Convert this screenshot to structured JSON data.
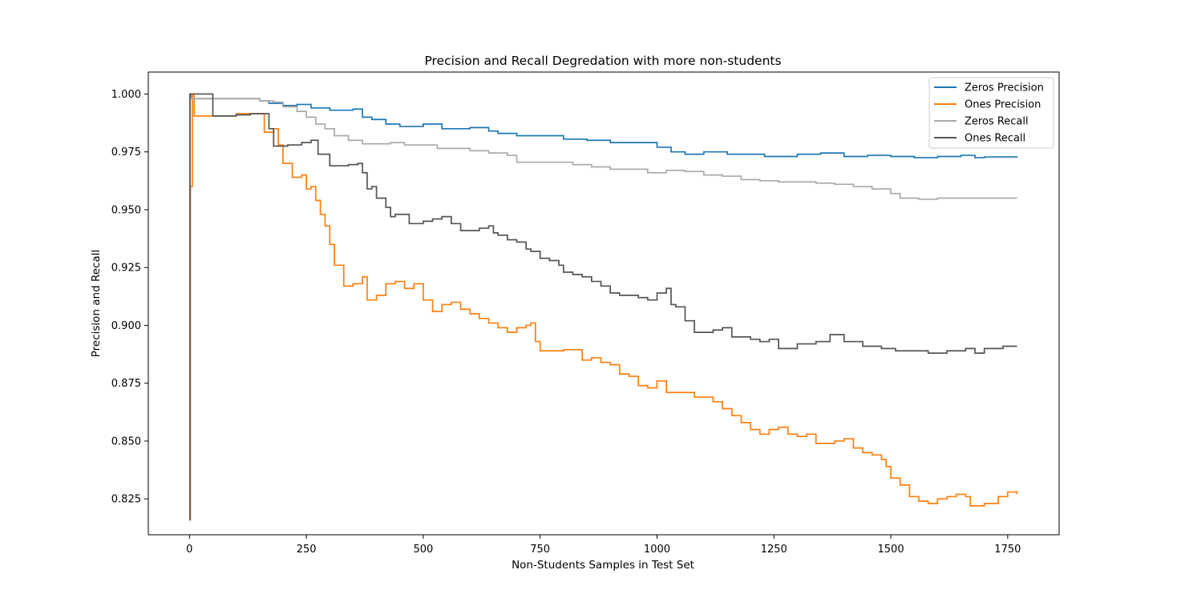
{
  "chart_data": {
    "type": "line",
    "title": "Precision and Recall Degredation with more non-students",
    "xlabel": "Non-Students Samples in Test Set",
    "ylabel": "Precision and Recall",
    "xlim": [
      -88,
      1860
    ],
    "ylim": [
      0.8095,
      1.0095
    ],
    "xticks": [
      0,
      250,
      500,
      750,
      1000,
      1250,
      1500,
      1750
    ],
    "xtick_labels": [
      "0",
      "250",
      "500",
      "750",
      "1000",
      "1250",
      "1500",
      "1750"
    ],
    "yticks": [
      0.825,
      0.85,
      0.875,
      0.9,
      0.925,
      0.95,
      0.975,
      1.0
    ],
    "ytick_labels": [
      "0.825",
      "0.850",
      "0.875",
      "0.900",
      "0.925",
      "0.950",
      "0.975",
      "1.000"
    ],
    "grid": false,
    "legend_position": "top-right",
    "series": [
      {
        "name": "Zeros Precision",
        "color": "#1f77b4",
        "x": [
          0,
          1,
          5,
          10,
          50,
          100,
          148,
          150,
          170,
          200,
          230,
          260,
          300,
          350,
          370,
          390,
          420,
          450,
          500,
          540,
          600,
          640,
          660,
          700,
          750,
          800,
          850,
          900,
          960,
          1000,
          1010,
          1030,
          1060,
          1100,
          1150,
          1200,
          1230,
          1300,
          1350,
          1400,
          1450,
          1500,
          1550,
          1600,
          1650,
          1680,
          1700,
          1770
        ],
        "values": [
          0.816,
          1.0,
          0.998,
          0.998,
          0.998,
          0.998,
          0.998,
          0.997,
          0.996,
          0.995,
          0.9955,
          0.994,
          0.993,
          0.9935,
          0.99,
          0.989,
          0.987,
          0.986,
          0.987,
          0.985,
          0.9855,
          0.984,
          0.983,
          0.982,
          0.982,
          0.9805,
          0.98,
          0.979,
          0.979,
          0.977,
          0.977,
          0.975,
          0.974,
          0.975,
          0.974,
          0.974,
          0.973,
          0.974,
          0.9745,
          0.973,
          0.9735,
          0.973,
          0.9725,
          0.973,
          0.9735,
          0.9725,
          0.9728,
          0.9731
        ]
      },
      {
        "name": "Ones Precision",
        "color": "#ff7f0e",
        "x": [
          0,
          2,
          6,
          10,
          50,
          100,
          130,
          160,
          180,
          190,
          200,
          220,
          240,
          250,
          260,
          270,
          280,
          290,
          300,
          310,
          330,
          350,
          370,
          380,
          400,
          420,
          440,
          460,
          480,
          500,
          520,
          540,
          560,
          580,
          600,
          620,
          640,
          660,
          680,
          700,
          720,
          730,
          740,
          750,
          780,
          800,
          820,
          840,
          860,
          880,
          900,
          920,
          940,
          960,
          980,
          1000,
          1020,
          1040,
          1060,
          1080,
          1100,
          1120,
          1140,
          1160,
          1180,
          1200,
          1220,
          1240,
          1260,
          1280,
          1300,
          1320,
          1340,
          1360,
          1380,
          1400,
          1420,
          1440,
          1460,
          1480,
          1490,
          1500,
          1520,
          1540,
          1560,
          1580,
          1600,
          1620,
          1640,
          1660,
          1670,
          1700,
          1730,
          1750,
          1770
        ],
        "values": [
          0.816,
          0.96,
          1.0,
          0.9905,
          0.9905,
          0.9915,
          0.9915,
          0.9835,
          0.985,
          0.978,
          0.97,
          0.964,
          0.965,
          0.959,
          0.96,
          0.954,
          0.948,
          0.943,
          0.935,
          0.926,
          0.917,
          0.918,
          0.921,
          0.911,
          0.913,
          0.918,
          0.919,
          0.916,
          0.918,
          0.911,
          0.906,
          0.909,
          0.91,
          0.907,
          0.905,
          0.903,
          0.901,
          0.899,
          0.897,
          0.899,
          0.9,
          0.901,
          0.893,
          0.889,
          0.889,
          0.8895,
          0.8895,
          0.885,
          0.886,
          0.884,
          0.883,
          0.879,
          0.878,
          0.874,
          0.873,
          0.876,
          0.871,
          0.871,
          0.871,
          0.869,
          0.869,
          0.867,
          0.864,
          0.861,
          0.858,
          0.855,
          0.853,
          0.855,
          0.856,
          0.853,
          0.852,
          0.853,
          0.849,
          0.849,
          0.85,
          0.851,
          0.847,
          0.845,
          0.844,
          0.842,
          0.839,
          0.834,
          0.831,
          0.826,
          0.824,
          0.823,
          0.825,
          0.826,
          0.827,
          0.826,
          0.822,
          0.823,
          0.826,
          0.828,
          0.827
        ]
      },
      {
        "name": "Zeros Recall",
        "color": "#aaaaaa",
        "x": [
          0,
          1,
          50,
          100,
          130,
          150,
          180,
          200,
          230,
          250,
          270,
          290,
          310,
          340,
          370,
          400,
          430,
          460,
          500,
          530,
          560,
          600,
          640,
          680,
          700,
          740,
          780,
          820,
          860,
          900,
          940,
          980,
          1020,
          1060,
          1100,
          1140,
          1180,
          1220,
          1260,
          1300,
          1340,
          1380,
          1420,
          1460,
          1500,
          1520,
          1560,
          1600,
          1640,
          1680,
          1720,
          1770
        ],
        "values": [
          0.816,
          0.998,
          0.998,
          0.998,
          0.998,
          0.997,
          0.9965,
          0.9945,
          0.9925,
          0.99,
          0.987,
          0.985,
          0.982,
          0.98,
          0.9785,
          0.9785,
          0.979,
          0.978,
          0.978,
          0.9765,
          0.9765,
          0.9755,
          0.9745,
          0.9735,
          0.9705,
          0.9705,
          0.9705,
          0.9695,
          0.9685,
          0.9675,
          0.9675,
          0.966,
          0.967,
          0.9665,
          0.965,
          0.9645,
          0.963,
          0.9625,
          0.962,
          0.962,
          0.9615,
          0.961,
          0.96,
          0.959,
          0.957,
          0.955,
          0.9545,
          0.955,
          0.955,
          0.955,
          0.955,
          0.955
        ]
      },
      {
        "name": "Ones Recall",
        "color": "#555555",
        "x": [
          0,
          1,
          48,
          50,
          100,
          130,
          150,
          170,
          180,
          210,
          240,
          260,
          275,
          300,
          320,
          340,
          360,
          370,
          380,
          390,
          400,
          420,
          430,
          440,
          470,
          500,
          520,
          540,
          560,
          580,
          600,
          620,
          640,
          650,
          660,
          680,
          700,
          720,
          730,
          750,
          770,
          790,
          800,
          820,
          840,
          860,
          880,
          900,
          920,
          940,
          960,
          980,
          1000,
          1020,
          1030,
          1040,
          1060,
          1080,
          1100,
          1120,
          1140,
          1160,
          1180,
          1200,
          1220,
          1240,
          1260,
          1300,
          1340,
          1370,
          1400,
          1440,
          1480,
          1510,
          1540,
          1580,
          1620,
          1660,
          1680,
          1700,
          1740,
          1770
        ],
        "values": [
          0.816,
          1.0,
          1.0,
          0.9905,
          0.991,
          0.9915,
          0.9915,
          0.985,
          0.9775,
          0.978,
          0.979,
          0.98,
          0.974,
          0.969,
          0.969,
          0.9695,
          0.97,
          0.966,
          0.959,
          0.96,
          0.955,
          0.951,
          0.947,
          0.948,
          0.944,
          0.945,
          0.946,
          0.947,
          0.944,
          0.941,
          0.941,
          0.942,
          0.943,
          0.94,
          0.939,
          0.937,
          0.936,
          0.933,
          0.932,
          0.929,
          0.928,
          0.926,
          0.923,
          0.922,
          0.921,
          0.919,
          0.917,
          0.914,
          0.913,
          0.913,
          0.912,
          0.911,
          0.914,
          0.916,
          0.909,
          0.908,
          0.902,
          0.897,
          0.897,
          0.898,
          0.899,
          0.895,
          0.895,
          0.894,
          0.893,
          0.894,
          0.89,
          0.892,
          0.893,
          0.896,
          0.893,
          0.891,
          0.89,
          0.889,
          0.889,
          0.888,
          0.889,
          0.89,
          0.888,
          0.89,
          0.891,
          0.891
        ]
      }
    ]
  }
}
